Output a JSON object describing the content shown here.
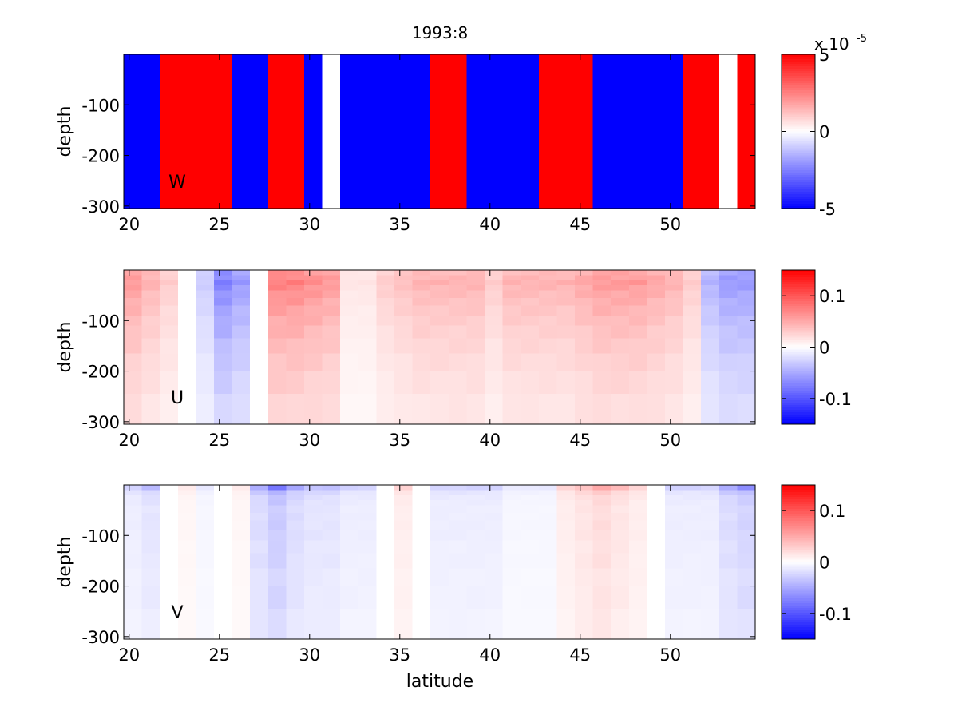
{
  "chart_data": {
    "type": "heatmap",
    "title": "1993:8",
    "xlabel": "latitude",
    "ylabel": "depth",
    "xlim": [
      19.7,
      54.7
    ],
    "x_ticks": [
      "20",
      "25",
      "30",
      "35",
      "40",
      "45",
      "50"
    ],
    "x_tick_values": [
      20,
      25,
      30,
      35,
      40,
      45,
      50
    ],
    "ylim": [
      -305,
      0
    ],
    "y_ticks": [
      "-100",
      "-200",
      "-300"
    ],
    "y_tick_values": [
      -100,
      -200,
      -300
    ],
    "colormap": "blue-white-red",
    "colors": {
      "negative": "#0000ff",
      "zero": "#ffffff",
      "positive": "#ff0000"
    },
    "lat_start": 19.7,
    "lat_step": 1.0,
    "depth_edges": [
      0,
      -10,
      -20,
      -30,
      -40,
      -55,
      -70,
      -90,
      -110,
      -135,
      -165,
      -200,
      -245,
      -305
    ],
    "panels": [
      {
        "id": "w",
        "variable_label": "W",
        "clim": [
          -5e-05,
          5e-05
        ],
        "colorbar_ticks": [
          "5",
          "0",
          "-5"
        ],
        "colorbar_tick_values": [
          5e-05,
          0,
          -5e-05
        ],
        "colorbar_exponent_base": "x 10",
        "colorbar_exponent": "-5",
        "profile": [
          -0.05,
          -0.1,
          0.2,
          0.25,
          0.25,
          0.1,
          -0.1,
          -0.2,
          0.1,
          0.1,
          -0.1,
          0,
          -0.05,
          -0.05,
          -0.05,
          -0.05,
          -0.05,
          0.1,
          0.1,
          -0.05,
          -0.05,
          -0.05,
          -0.05,
          0.1,
          0.25,
          0.1,
          -0.2,
          -0.15,
          -0.1,
          -0.25,
          -0.1,
          0.1,
          0.1,
          0,
          0.15
        ],
        "depth_shape": [
          0.4,
          0.8,
          1.0,
          1.0,
          0.95,
          0.9,
          0.9,
          0.85,
          0.8,
          0.75,
          0.7,
          0.6,
          0.5
        ]
      },
      {
        "id": "u",
        "variable_label": "U",
        "clim": [
          -0.15,
          0.15
        ],
        "colorbar_ticks": [
          "0.1",
          "0",
          "-0.1"
        ],
        "colorbar_tick_values": [
          0.1,
          0,
          -0.1
        ],
        "profile": [
          0.04,
          0.03,
          0.02,
          0.0,
          -0.02,
          -0.05,
          -0.04,
          0.0,
          0.05,
          0.05,
          0.045,
          0.04,
          0.01,
          0.01,
          0.02,
          0.025,
          0.03,
          0.03,
          0.03,
          0.03,
          0.02,
          0.03,
          0.03,
          0.03,
          0.03,
          0.035,
          0.04,
          0.04,
          0.04,
          0.035,
          0.03,
          0.02,
          -0.03,
          -0.04,
          -0.04
        ],
        "depth_shape": [
          1.3,
          1.4,
          1.5,
          1.4,
          1.3,
          1.2,
          1.1,
          1.0,
          0.9,
          0.8,
          0.7,
          0.6,
          0.5
        ]
      },
      {
        "id": "v",
        "variable_label": "V",
        "clim": [
          -0.15,
          0.15
        ],
        "colorbar_ticks": [
          "0.1",
          "0",
          "-0.1"
        ],
        "colorbar_tick_values": [
          0.1,
          0,
          -0.1
        ],
        "profile": [
          -0.01,
          -0.015,
          0.0,
          0.005,
          -0.005,
          0.0,
          0.005,
          -0.02,
          -0.03,
          -0.02,
          -0.015,
          -0.015,
          -0.01,
          -0.01,
          0.0,
          0.01,
          0.0,
          -0.01,
          -0.01,
          -0.01,
          -0.01,
          -0.005,
          -0.005,
          -0.005,
          0.01,
          0.015,
          0.02,
          0.015,
          0.01,
          0.0,
          -0.01,
          -0.01,
          -0.01,
          -0.02,
          -0.025
        ],
        "depth_shape": [
          2.5,
          1.5,
          1.2,
          1.1,
          1.0,
          1.0,
          1.0,
          1.0,
          0.9,
          0.9,
          0.8,
          0.8,
          0.7
        ]
      }
    ]
  }
}
